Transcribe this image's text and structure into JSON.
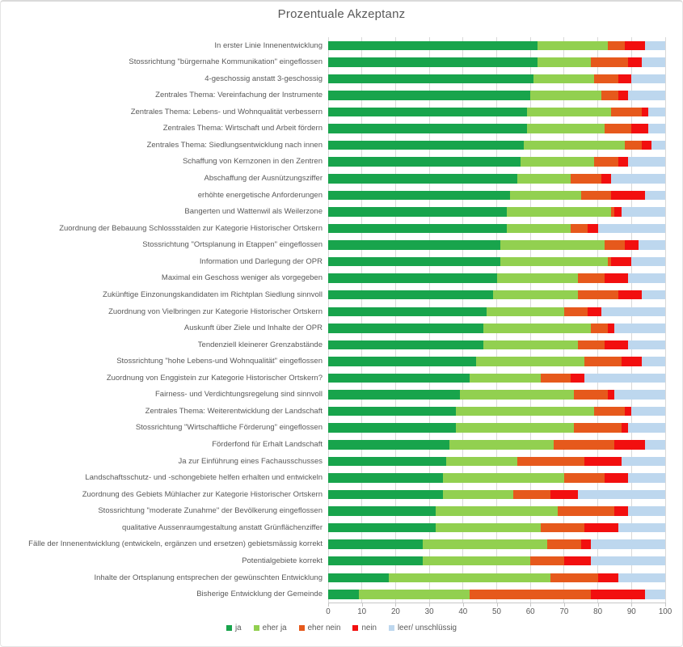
{
  "title": "Prozentuale Akzeptanz",
  "chart_data": {
    "type": "bar",
    "orientation": "horizontal",
    "stacked": true,
    "title": "Prozentuale Akzeptanz",
    "xlabel": "",
    "ylabel": "",
    "xlim": [
      0,
      100
    ],
    "x_ticks": [
      0,
      10,
      20,
      30,
      40,
      50,
      60,
      70,
      80,
      90,
      100
    ],
    "grid": "vertical",
    "legend_position": "bottom",
    "categories": [
      "In erster Linie Innenentwicklung",
      "Stossrichtung \"bürgernahe Kommunikation\" eingeflossen",
      "4-geschossig anstatt 3-geschossig",
      "Zentrales Thema: Vereinfachung der Instrumente",
      "Zentrales Thema: Lebens- und Wohnqualität verbessern",
      "Zentrales Thema: Wirtschaft und Arbeit fördern",
      "Zentrales Thema: Siedlungsentwicklung nach innen",
      "Schaffung von Kernzonen in den Zentren",
      "Abschaffung der Ausnützungsziffer",
      "erhöhte energetische Anforderungen",
      "Bangerten und Wattenwil als Weilerzone",
      "Zuordnung der Bebauung Schlossstalden zur Kategorie Historischer Ortskern",
      "Stossrichtung \"Ortsplanung in Etappen\" eingeflossen",
      "Information und Darlegung der OPR",
      "Maximal ein Geschoss weniger als vorgegeben",
      "Zukünftige Einzonungskandidaten im Richtplan Siedlung sinnvoll",
      "Zuordnung von Vielbringen zur Kategorie Historischer Ortskern",
      "Auskunft über Ziele und Inhalte der OPR",
      "Tendenziell kleinerer Grenzabstände",
      "Stossrichtung \"hohe Lebens-und Wohnqualität\" eingeflossen",
      "Zuordnung von Enggistein zur Kategorie Historischer Ortskern?",
      "Fairness- und Verdichtungsregelung sind sinnvoll",
      "Zentrales Thema: Weiterentwicklung der Landschaft",
      "Stossrichtung \"Wirtschaftliche Förderung\" eingeflossen",
      "Förderfond für Erhalt Landschaft",
      "Ja zur Einführung eines Fachausschusses",
      "Landschaftsschutz- und -schongebiete helfen erhalten und entwickeln",
      "Zuordnung des Gebiets Mühlacher zur Kategorie Historischer Ortskern",
      "Stossrichtung \"moderate Zunahme\" der Bevölkerung eingeflossen",
      "qualitative Aussenraumgestaltung anstatt Grünflächenziffer",
      "Fälle der Innenentwicklung (entwickeln, ergänzen und ersetzen) gebietsmässig korrekt",
      "Potentialgebiete korrekt",
      "Inhalte der Ortsplanung entsprechen der gewünschten Entwicklung",
      "Bisherige Entwicklung der Gemeinde"
    ],
    "series": [
      {
        "name": "ja",
        "color": "#18A44C",
        "values": [
          62,
          62,
          61,
          60,
          59,
          59,
          58,
          57,
          56,
          54,
          53,
          53,
          51,
          51,
          50,
          49,
          47,
          46,
          46,
          44,
          42,
          39,
          38,
          38,
          36,
          35,
          34,
          34,
          32,
          32,
          28,
          28,
          18,
          9
        ]
      },
      {
        "name": "eher ja",
        "color": "#92D050",
        "values": [
          21,
          16,
          18,
          21,
          25,
          23,
          30,
          22,
          16,
          21,
          31,
          19,
          31,
          32,
          24,
          25,
          23,
          32,
          28,
          32,
          21,
          34,
          41,
          35,
          31,
          21,
          36,
          21,
          36,
          31,
          37,
          32,
          48,
          33
        ]
      },
      {
        "name": "eher nein",
        "color": "#E6591C",
        "values": [
          5,
          11,
          7,
          5,
          9,
          8,
          5,
          7,
          9,
          9,
          1,
          5,
          6,
          1,
          8,
          12,
          7,
          5,
          8,
          11,
          9,
          10,
          9,
          14,
          18,
          20,
          12,
          11,
          17,
          13,
          10,
          10,
          14,
          36
        ]
      },
      {
        "name": "nein",
        "color": "#F20F0F",
        "values": [
          6,
          4,
          4,
          3,
          2,
          5,
          3,
          3,
          3,
          10,
          2,
          3,
          4,
          6,
          7,
          7,
          4,
          2,
          7,
          6,
          4,
          2,
          2,
          2,
          9,
          11,
          7,
          8,
          4,
          10,
          3,
          8,
          6,
          16
        ]
      },
      {
        "name": "leer/ unschlüssig",
        "color": "#BDD7EE",
        "values": [
          6,
          7,
          10,
          11,
          5,
          5,
          4,
          11,
          16,
          6,
          13,
          20,
          8,
          10,
          11,
          7,
          19,
          15,
          11,
          7,
          24,
          15,
          10,
          11,
          6,
          13,
          11,
          26,
          11,
          14,
          22,
          22,
          14,
          6
        ]
      }
    ]
  },
  "colors": {
    "gridline": "#d9d9d9",
    "axis": "#c6c6c6",
    "text": "#595959"
  }
}
